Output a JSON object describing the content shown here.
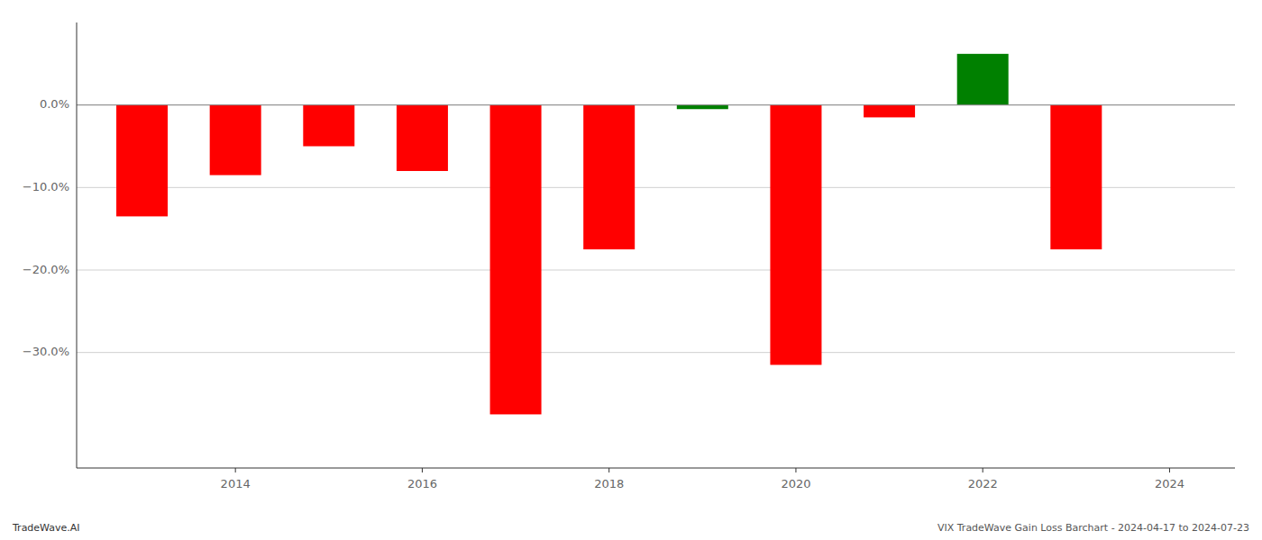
{
  "chart_data": {
    "type": "bar",
    "x": [
      2013,
      2014,
      2015,
      2016,
      2017,
      2018,
      2019,
      2020,
      2021,
      2022,
      2023
    ],
    "values": [
      -0.135,
      -0.085,
      -0.05,
      -0.08,
      -0.375,
      -0.175,
      -0.005,
      -0.315,
      -0.015,
      0.062,
      -0.175
    ],
    "colors": [
      "#ff0000",
      "#ff0000",
      "#ff0000",
      "#ff0000",
      "#ff0000",
      "#ff0000",
      "#008000",
      "#ff0000",
      "#ff0000",
      "#008000",
      "#ff0000"
    ],
    "xlim": [
      2012.3,
      2024.7
    ],
    "xticks": [
      2014,
      2016,
      2018,
      2020,
      2022,
      2024
    ],
    "ylim": [
      -0.44,
      0.1
    ],
    "yticks": [
      {
        "value": 0.0,
        "label": "0.0%"
      },
      {
        "value": -0.1,
        "label": "−10.0%"
      },
      {
        "value": -0.2,
        "label": "−20.0%"
      },
      {
        "value": -0.3,
        "label": "−30.0%"
      }
    ],
    "grid": true,
    "annotations": [
      "TradeWave.AI",
      "VIX TradeWave Gain Loss Barchart - 2024-04-17 to 2024-07-23"
    ]
  }
}
